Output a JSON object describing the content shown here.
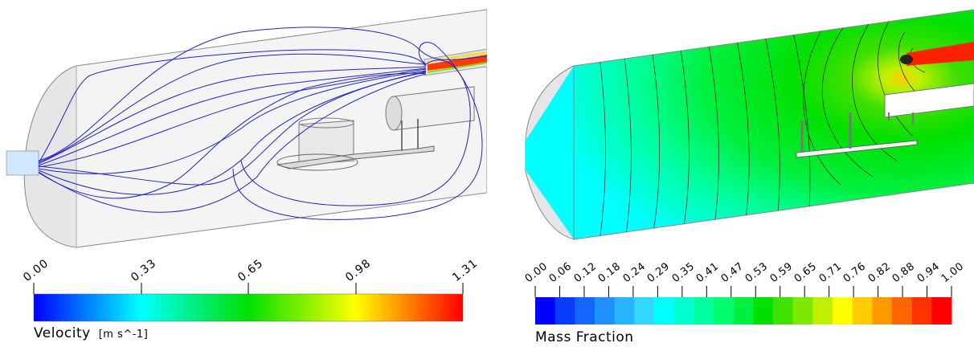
{
  "left": {
    "legend": {
      "title": "Velocity",
      "unit": "[m s^-1]",
      "ticks": [
        "0.00",
        "0.33",
        "0.65",
        "0.98",
        "1.31"
      ]
    },
    "colors": [
      "#0000ff",
      "#00ffff",
      "#00e000",
      "#ffff00",
      "#ff0000"
    ]
  },
  "right": {
    "legend": {
      "title": "Mass Fraction",
      "ticks": [
        "0.00",
        "0.06",
        "0.12",
        "0.18",
        "0.24",
        "0.29",
        "0.35",
        "0.41",
        "0.47",
        "0.53",
        "0.59",
        "0.65",
        "0.71",
        "0.76",
        "0.82",
        "0.88",
        "0.94",
        "1.00"
      ]
    },
    "band_colors": [
      "#0000ff",
      "#0a3cff",
      "#1466ff",
      "#1e90ff",
      "#28b4ff",
      "#32d8ff",
      "#00ffff",
      "#00ffd0",
      "#00ffa0",
      "#00ff70",
      "#00f040",
      "#00e000",
      "#40e000",
      "#80e800",
      "#c0f000",
      "#ffff00",
      "#ffcc00",
      "#ff9900",
      "#ff6600",
      "#ff3300",
      "#ff0000"
    ]
  }
}
